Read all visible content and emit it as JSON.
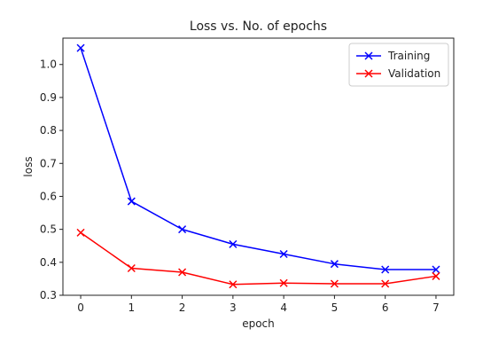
{
  "chart_data": {
    "type": "line",
    "title": "Loss vs. No. of epochs",
    "xlabel": "epoch",
    "ylabel": "loss",
    "x": [
      0,
      1,
      2,
      3,
      4,
      5,
      6,
      7
    ],
    "xlim": [
      -0.35,
      7.35
    ],
    "ylim": [
      0.3,
      1.08
    ],
    "yticks": [
      0.3,
      0.4,
      0.5,
      0.6,
      0.7,
      0.8,
      0.9,
      1.0
    ],
    "ytick_labels": [
      "0.3",
      "0.4",
      "0.5",
      "0.6",
      "0.7",
      "0.8",
      "0.9",
      "1.0"
    ],
    "xtick_labels": [
      "0",
      "1",
      "2",
      "3",
      "4",
      "5",
      "6",
      "7"
    ],
    "grid": false,
    "legend_position": "top-right",
    "series": [
      {
        "name": "Training",
        "color": "#0000ff",
        "marker": "x",
        "values": [
          1.05,
          0.585,
          0.5,
          0.455,
          0.425,
          0.395,
          0.378,
          0.378
        ]
      },
      {
        "name": "Validation",
        "color": "#ff0000",
        "marker": "x",
        "values": [
          0.49,
          0.382,
          0.37,
          0.333,
          0.337,
          0.335,
          0.335,
          0.358
        ]
      }
    ]
  }
}
